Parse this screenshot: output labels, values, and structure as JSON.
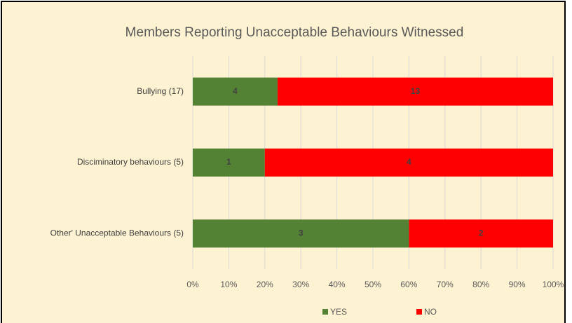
{
  "chart_data": {
    "type": "bar",
    "orientation": "horizontal",
    "stacked": "percent",
    "title": "Members  Reporting Unacceptable Behaviours Witnessed",
    "categories": [
      "Bullying (17)",
      "Disciminatory behaviours (5)",
      "Other' Unacceptable Behaviours (5)"
    ],
    "series": [
      {
        "name": "YES",
        "color": "#548235",
        "values": [
          4,
          1,
          3
        ]
      },
      {
        "name": "NO",
        "color": "#ff0000",
        "values": [
          13,
          4,
          2
        ]
      }
    ],
    "xlim": [
      0,
      100
    ],
    "xticks": [
      {
        "value": 0,
        "label": "0%"
      },
      {
        "value": 10,
        "label": "10%"
      },
      {
        "value": 20,
        "label": "20%"
      },
      {
        "value": 30,
        "label": "30%"
      },
      {
        "value": 40,
        "label": "40%"
      },
      {
        "value": 50,
        "label": "50%"
      },
      {
        "value": 60,
        "label": "60%"
      },
      {
        "value": 70,
        "label": "70%"
      },
      {
        "value": 80,
        "label": "80%"
      },
      {
        "value": 90,
        "label": "90%"
      },
      {
        "value": 100,
        "label": "100%"
      }
    ],
    "grid": true,
    "legend": "bottom"
  }
}
